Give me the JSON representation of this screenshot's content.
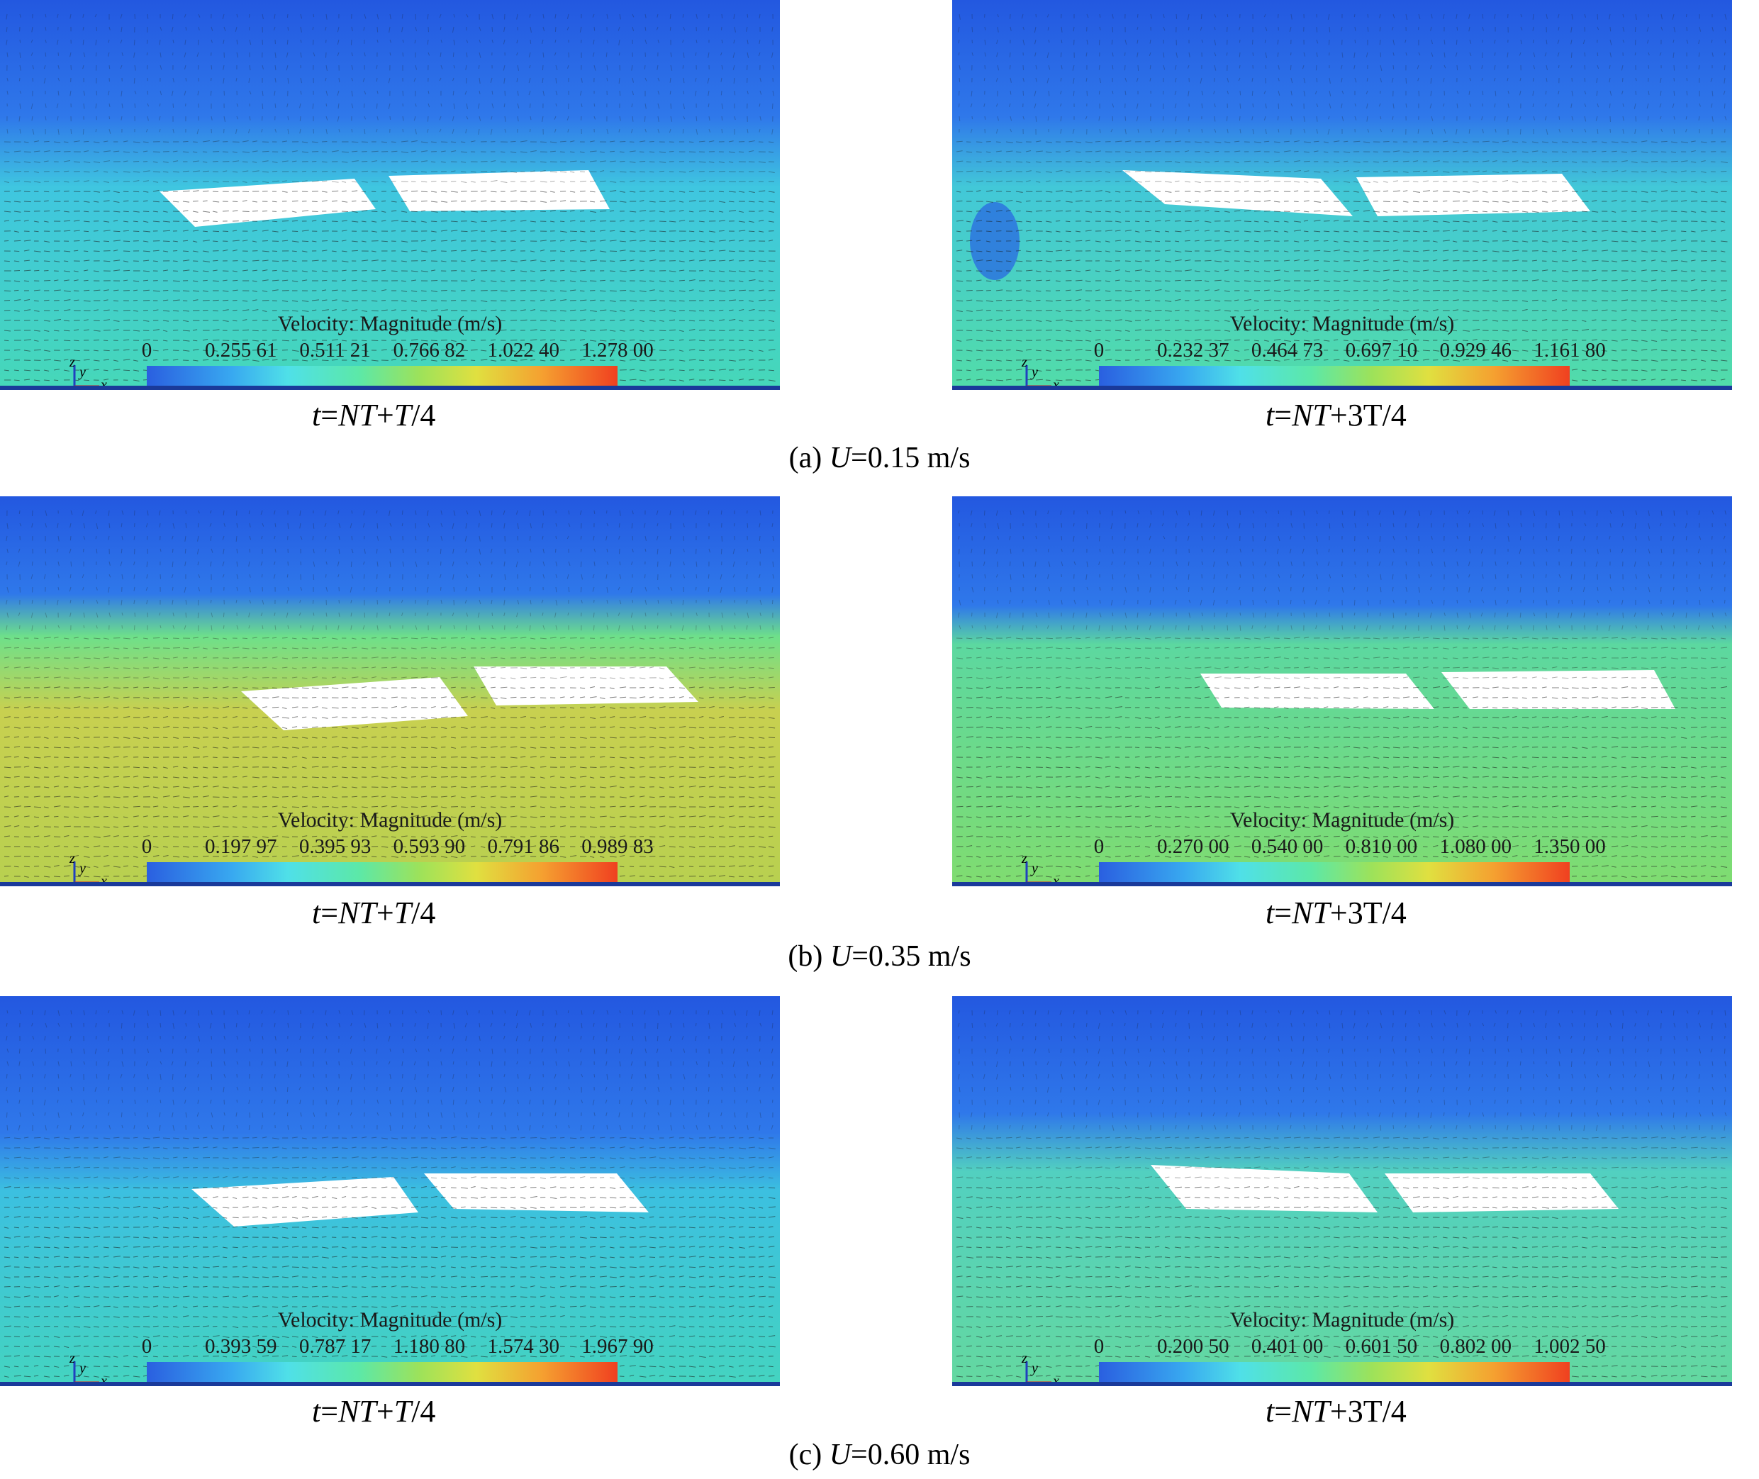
{
  "colorbar_title": "Velocity: Magnitude (m/s)",
  "axis_labels": {
    "z": "z",
    "y": "y",
    "x": "x"
  },
  "time_labels": {
    "left": "t=NT+T/4",
    "right": "t=NT+3T/4"
  },
  "rows": [
    {
      "caption": "(a) U=0.15 m/s",
      "left": {
        "ticks": [
          "0",
          "0.255 61",
          "0.511 21",
          "0.766 82",
          "1.022 40",
          "1.278 00"
        ]
      },
      "right": {
        "ticks": [
          "0",
          "0.232 37",
          "0.464 73",
          "0.697 10",
          "0.929 46",
          "1.161 80"
        ]
      }
    },
    {
      "caption": "(b) U=0.35 m/s",
      "left": {
        "ticks": [
          "0",
          "0.197 97",
          "0.395 93",
          "0.593 90",
          "0.791 86",
          "0.989 83"
        ]
      },
      "right": {
        "ticks": [
          "0",
          "0.270 00",
          "0.540 00",
          "0.810 00",
          "1.080 00",
          "1.350 00"
        ]
      }
    },
    {
      "caption": "(c) U=0.60 m/s",
      "left": {
        "ticks": [
          "0",
          "0.393 59",
          "0.787 17",
          "1.180 80",
          "1.574 30",
          "1.967 90"
        ]
      },
      "right": {
        "ticks": [
          "0",
          "0.200 50",
          "0.401 00",
          "0.601 50",
          "0.802 00",
          "1.002 50"
        ]
      }
    }
  ],
  "colors": {
    "air": "#1f5fe0",
    "water_low": "#39d1c8",
    "water_mid": "#6fdc86",
    "water_high": "#e0a040",
    "structure": "#ffffff",
    "arrows": "#1a1a1a"
  }
}
